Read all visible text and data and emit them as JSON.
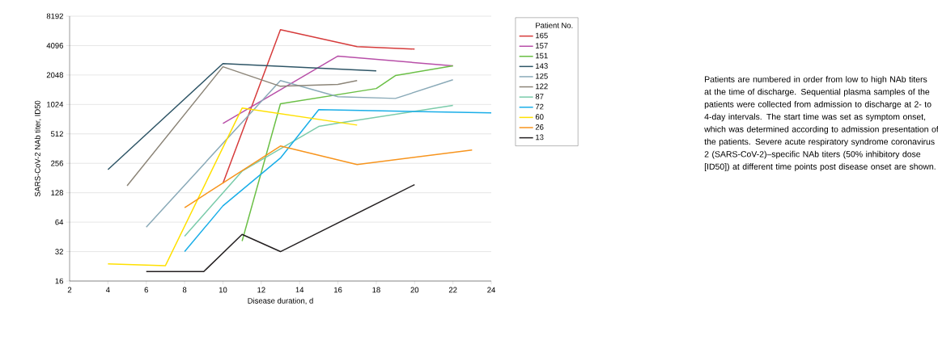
{
  "chart_data": {
    "type": "line",
    "xlabel": "Disease duration, d",
    "ylabel": "SARS-CoV-2 NAb titer, ID50",
    "legend_title": "Patient No.",
    "legend": "right",
    "grid": "y",
    "log": "y",
    "line_style": "solid",
    "marker": "none",
    "xlim": [
      2,
      24
    ],
    "xticks": [
      2,
      4,
      6,
      8,
      10,
      12,
      14,
      16,
      18,
      20,
      22,
      24
    ],
    "ylim": [
      16,
      8192
    ],
    "yticks": [
      16,
      32,
      64,
      128,
      256,
      512,
      1024,
      2048,
      4096,
      8192
    ],
    "series": [
      {
        "name": "165",
        "color": "#d63b3b",
        "x": [
          10,
          13,
          17,
          20
        ],
        "values": [
          160,
          5950,
          4000,
          3770
        ]
      },
      {
        "name": "157",
        "color": "#b84fa8",
        "x": [
          10,
          16,
          22
        ],
        "values": [
          655,
          3200,
          2540
        ]
      },
      {
        "name": "151",
        "color": "#6abf45",
        "x": [
          11,
          13,
          18,
          19,
          22
        ],
        "values": [
          41,
          1040,
          1490,
          2020,
          2540
        ]
      },
      {
        "name": "143",
        "color": "#2e5566",
        "x": [
          4,
          10,
          18
        ],
        "values": [
          221,
          2680,
          2260
        ]
      },
      {
        "name": "125",
        "color": "#8aaab8",
        "x": [
          6,
          13,
          16,
          19,
          22
        ],
        "values": [
          57,
          1800,
          1230,
          1180,
          1830
        ]
      },
      {
        "name": "122",
        "color": "#8c8578",
        "x": [
          5,
          10,
          13,
          16,
          17
        ],
        "values": [
          151,
          2490,
          1570,
          1640,
          1800
        ]
      },
      {
        "name": "87",
        "color": "#7acbaa",
        "x": [
          8,
          11,
          15,
          16,
          22
        ],
        "values": [
          46,
          213,
          610,
          660,
          1000
        ]
      },
      {
        "name": "72",
        "color": "#1aaee8",
        "x": [
          8,
          10,
          13,
          15,
          24
        ],
        "values": [
          32,
          94,
          290,
          905,
          840
        ]
      },
      {
        "name": "60",
        "color": "#ffe000",
        "x": [
          4,
          7,
          11,
          17
        ],
        "values": [
          24,
          23,
          940,
          630
        ]
      },
      {
        "name": "26",
        "color": "#f7941d",
        "x": [
          8,
          13,
          17,
          23
        ],
        "values": [
          90,
          385,
          249,
          350
        ]
      },
      {
        "name": "13",
        "color": "#231f20",
        "x": [
          6,
          9,
          11,
          13,
          20
        ],
        "values": [
          20,
          20,
          48,
          32,
          155
        ]
      }
    ],
    "annotations": [
      "Patients are numbered in order from low to high NAb titers at the time of discharge. Sequential plasma samples of the patients were collected from admission to discharge at 2- to 4-day intervals. The start time was set as symptom onset, which was determined according to admission presentation of the patients. Severe acute respiratory syndrome coronavirus 2 (SARS-CoV-2)–specific NAb titers (50% inhibitory dose [ID50]) at different time points post disease onset are shown."
    ]
  }
}
